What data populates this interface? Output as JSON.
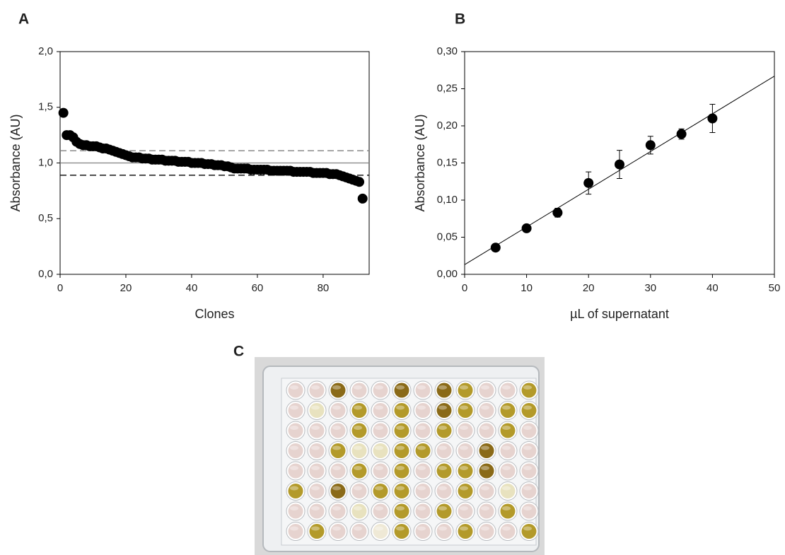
{
  "chart_data": [
    {
      "type": "scatter",
      "panel": "A",
      "xlabel": "Clones",
      "ylabel": "Absorbance (AU)",
      "x": [
        1,
        2,
        3,
        4,
        5,
        6,
        7,
        8,
        9,
        10,
        11,
        12,
        13,
        14,
        15,
        16,
        17,
        18,
        19,
        20,
        21,
        22,
        23,
        24,
        25,
        26,
        27,
        28,
        29,
        30,
        31,
        32,
        33,
        34,
        35,
        36,
        37,
        38,
        39,
        40,
        41,
        42,
        43,
        44,
        45,
        46,
        47,
        48,
        49,
        50,
        51,
        52,
        53,
        54,
        55,
        56,
        57,
        58,
        59,
        60,
        61,
        62,
        63,
        64,
        65,
        66,
        67,
        68,
        69,
        70,
        71,
        72,
        73,
        74,
        75,
        76,
        77,
        78,
        79,
        80,
        81,
        82,
        83,
        84,
        85,
        86,
        87,
        88,
        89,
        90,
        91,
        92
      ],
      "values": [
        1.45,
        1.25,
        1.25,
        1.23,
        1.19,
        1.17,
        1.16,
        1.16,
        1.15,
        1.15,
        1.15,
        1.14,
        1.13,
        1.13,
        1.12,
        1.11,
        1.1,
        1.09,
        1.08,
        1.07,
        1.06,
        1.05,
        1.05,
        1.05,
        1.04,
        1.04,
        1.04,
        1.03,
        1.03,
        1.03,
        1.03,
        1.02,
        1.02,
        1.02,
        1.02,
        1.01,
        1.01,
        1.01,
        1.01,
        1.0,
        1.0,
        1.0,
        1.0,
        0.99,
        0.99,
        0.99,
        0.98,
        0.98,
        0.98,
        0.97,
        0.97,
        0.96,
        0.95,
        0.95,
        0.95,
        0.95,
        0.95,
        0.94,
        0.94,
        0.94,
        0.94,
        0.94,
        0.94,
        0.93,
        0.93,
        0.93,
        0.93,
        0.93,
        0.93,
        0.93,
        0.92,
        0.92,
        0.92,
        0.92,
        0.92,
        0.92,
        0.91,
        0.91,
        0.91,
        0.91,
        0.91,
        0.9,
        0.9,
        0.9,
        0.89,
        0.88,
        0.87,
        0.86,
        0.85,
        0.84,
        0.83,
        0.68
      ],
      "color": "#000000",
      "xlim": [
        0,
        94
      ],
      "xticks": [
        0,
        20,
        40,
        60,
        80
      ],
      "ylim": [
        0,
        2
      ],
      "yticks": [
        {
          "value": 0,
          "label": "0,0"
        },
        {
          "value": 0.5,
          "label": "0,5"
        },
        {
          "value": 1,
          "label": "1,0"
        },
        {
          "value": 1.5,
          "label": "1,5"
        },
        {
          "value": 2,
          "label": "2,0"
        }
      ],
      "hlines": [
        {
          "value": 1.11,
          "color": "#808080",
          "dash": true
        },
        {
          "value": 1.0,
          "color": "#808080",
          "dash": false
        },
        {
          "value": 0.89,
          "color": "#000000",
          "dash": true
        }
      ]
    },
    {
      "type": "scatter",
      "panel": "B",
      "xlabel": "µL of supernatant",
      "ylabel": "Absorbance (AU)",
      "x": [
        5,
        10,
        15,
        20,
        25,
        30,
        35,
        40
      ],
      "values": [
        0.036,
        0.062,
        0.083,
        0.123,
        0.148,
        0.174,
        0.189,
        0.21
      ],
      "errors": [
        0.003,
        0.003,
        0.006,
        0.015,
        0.019,
        0.012,
        0.007,
        0.019
      ],
      "color": "#000000",
      "fit": {
        "x": [
          0,
          50
        ],
        "y": [
          0.013,
          0.267
        ]
      },
      "xlim": [
        0,
        50
      ],
      "xticks": [
        0,
        10,
        20,
        30,
        40,
        50
      ],
      "ylim": [
        0,
        0.3
      ],
      "yticks": [
        {
          "value": 0,
          "label": "0,00"
        },
        {
          "value": 0.05,
          "label": "0,05"
        },
        {
          "value": 0.1,
          "label": "0,10"
        },
        {
          "value": 0.15,
          "label": "0,15"
        },
        {
          "value": 0.2,
          "label": "0,20"
        },
        {
          "value": 0.25,
          "label": "0,25"
        },
        {
          "value": 0.3,
          "label": "0,30"
        }
      ]
    }
  ],
  "photo": {
    "panel": "C"
  }
}
